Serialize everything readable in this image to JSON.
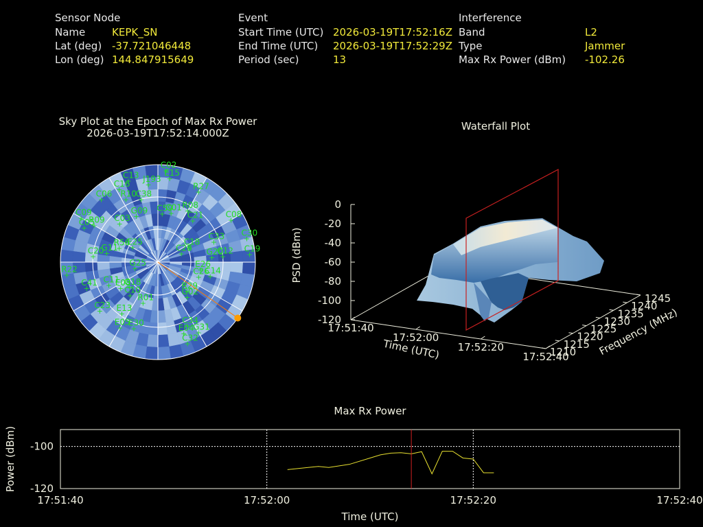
{
  "header": {
    "sensor_node": {
      "title": "Sensor Node",
      "name_label": "Name",
      "name_value": "KEPK_SN",
      "lat_label": "Lat (deg)",
      "lat_value": "-37.721046448",
      "lon_label": "Lon (deg)",
      "lon_value": "144.847915649"
    },
    "event": {
      "title": "Event",
      "start_label": "Start Time (UTC)",
      "start_value": "2026-03-19T17:52:16Z",
      "end_label": "End Time (UTC)",
      "end_value": "2026-03-19T17:52:29Z",
      "period_label": "Period (sec)",
      "period_value": "13"
    },
    "interference": {
      "title": "Interference",
      "band_label": "Band",
      "band_value": "L2",
      "type_label": "Type",
      "type_value": "Jammer",
      "maxrx_label": "Max Rx Power (dBm)",
      "maxrx_value": "-102.26"
    }
  },
  "chart_data": [
    {
      "type": "scatter",
      "title": "Sky Plot at the Epoch of Max Rx Power",
      "subtitle": "2026-03-19T17:52:14.000Z",
      "satellites": [
        {
          "id": "C13",
          "az": 340,
          "el": 10
        },
        {
          "id": "C02",
          "az": 5,
          "el": 5
        },
        {
          "id": "E15",
          "az": 8,
          "el": 12
        },
        {
          "id": "C16",
          "az": 332,
          "el": 14
        },
        {
          "id": "J193",
          "az": 353,
          "el": 18
        },
        {
          "id": "C06",
          "az": 318,
          "el": 12
        },
        {
          "id": "R10",
          "az": 333,
          "el": 25
        },
        {
          "id": "C38",
          "az": 345,
          "el": 30
        },
        {
          "id": "R27",
          "az": 30,
          "el": 15
        },
        {
          "id": "C09",
          "az": 300,
          "el": 8
        },
        {
          "id": "G09",
          "az": 335,
          "el": 43
        },
        {
          "id": "C59",
          "az": 5,
          "el": 45
        },
        {
          "id": "C01",
          "az": 15,
          "el": 43
        },
        {
          "id": "R08",
          "az": 30,
          "el": 35
        },
        {
          "id": "C21",
          "az": 40,
          "el": 40
        },
        {
          "id": "C03",
          "az": 315,
          "el": 40
        },
        {
          "id": "R09",
          "az": 300,
          "el": 22
        },
        {
          "id": "C05",
          "az": 295,
          "el": 15
        },
        {
          "id": "C08",
          "az": 60,
          "el": 12
        },
        {
          "id": "C33",
          "az": 70,
          "el": 35
        },
        {
          "id": "C20",
          "az": 275,
          "el": 30
        },
        {
          "id": "C30",
          "az": 75,
          "el": 5
        },
        {
          "id": "R56",
          "az": 290,
          "el": 52
        },
        {
          "id": "E25",
          "az": 300,
          "el": 63
        },
        {
          "id": "G11",
          "az": 280,
          "el": 42
        },
        {
          "id": "C18",
          "az": 65,
          "el": 58
        },
        {
          "id": "C28",
          "az": 70,
          "el": 67
        },
        {
          "id": "C19",
          "az": 85,
          "el": 5
        },
        {
          "id": "C12",
          "az": 85,
          "el": 30
        },
        {
          "id": "G20",
          "az": 85,
          "el": 40
        },
        {
          "id": "C14",
          "az": 105,
          "el": 40
        },
        {
          "id": "E26",
          "az": 100,
          "el": 50
        },
        {
          "id": "C26",
          "az": 110,
          "el": 50
        },
        {
          "id": "G25",
          "az": 255,
          "el": 68
        },
        {
          "id": "C10",
          "az": 220,
          "el": 50
        },
        {
          "id": "C11",
          "az": 245,
          "el": 40
        },
        {
          "id": "E08",
          "az": 235,
          "el": 48
        },
        {
          "id": "G18",
          "az": 228,
          "el": 55
        },
        {
          "id": "C41",
          "az": 250,
          "el": 20
        },
        {
          "id": "R22",
          "az": 262,
          "el": 5
        },
        {
          "id": "C23",
          "az": 230,
          "el": 20
        },
        {
          "id": "E13",
          "az": 215,
          "el": 32
        },
        {
          "id": "R01",
          "az": 200,
          "el": 50
        },
        {
          "id": "R29",
          "az": 135,
          "el": 52
        },
        {
          "id": "G02",
          "az": 140,
          "el": 48
        },
        {
          "id": "C34",
          "az": 155,
          "el": 25
        },
        {
          "id": "G31",
          "az": 150,
          "el": 15
        },
        {
          "id": "C32",
          "az": 160,
          "el": 10
        },
        {
          "id": "E04",
          "az": 160,
          "el": 20
        },
        {
          "id": "E05",
          "az": 210,
          "el": 20
        },
        {
          "id": "E30",
          "az": 200,
          "el": 25
        }
      ],
      "max_power_direction_az": 125
    },
    {
      "type": "area",
      "title": "Waterfall Plot",
      "xlabel": "Time (UTC)",
      "ylabel": "Frequency (MHz)",
      "zlabel": "PSD (dBm)",
      "x_ticks": [
        "17:51:40",
        "17:52:00",
        "17:52:20",
        "17:52:40"
      ],
      "y_ticks": [
        "1210",
        "1215",
        "1220",
        "1225",
        "1230",
        "1235",
        "1240",
        "1245"
      ],
      "z_ticks": [
        "0",
        "-20",
        "-40",
        "-60",
        "-80",
        "-100",
        "-120"
      ],
      "zlim": [
        -120,
        0
      ],
      "ylim": [
        1210,
        1245
      ],
      "marker_time": "17:52:14"
    },
    {
      "type": "line",
      "title": "Max Rx Power",
      "xlabel": "Time (UTC)",
      "ylabel": "Power (dBm)",
      "x_ticks": [
        "17:51:40",
        "17:52:00",
        "17:52:20",
        "17:52:40"
      ],
      "y_ticks": [
        "-100",
        "-120"
      ],
      "ylim": [
        -120,
        -92
      ],
      "xlim_sec": [
        0,
        60
      ],
      "x_sec": [
        22,
        24,
        25,
        26,
        28,
        30,
        31,
        32,
        33,
        34,
        35,
        36,
        37,
        38,
        39,
        40,
        41,
        42
      ],
      "values": [
        -111,
        -110,
        -109.5,
        -110,
        -108.5,
        -105.5,
        -104,
        -103.2,
        -103,
        -103.5,
        -102.5,
        -113,
        -102.3,
        -102.3,
        -105.5,
        -106,
        -112.5,
        -112.5
      ],
      "marker_sec": 34
    }
  ]
}
